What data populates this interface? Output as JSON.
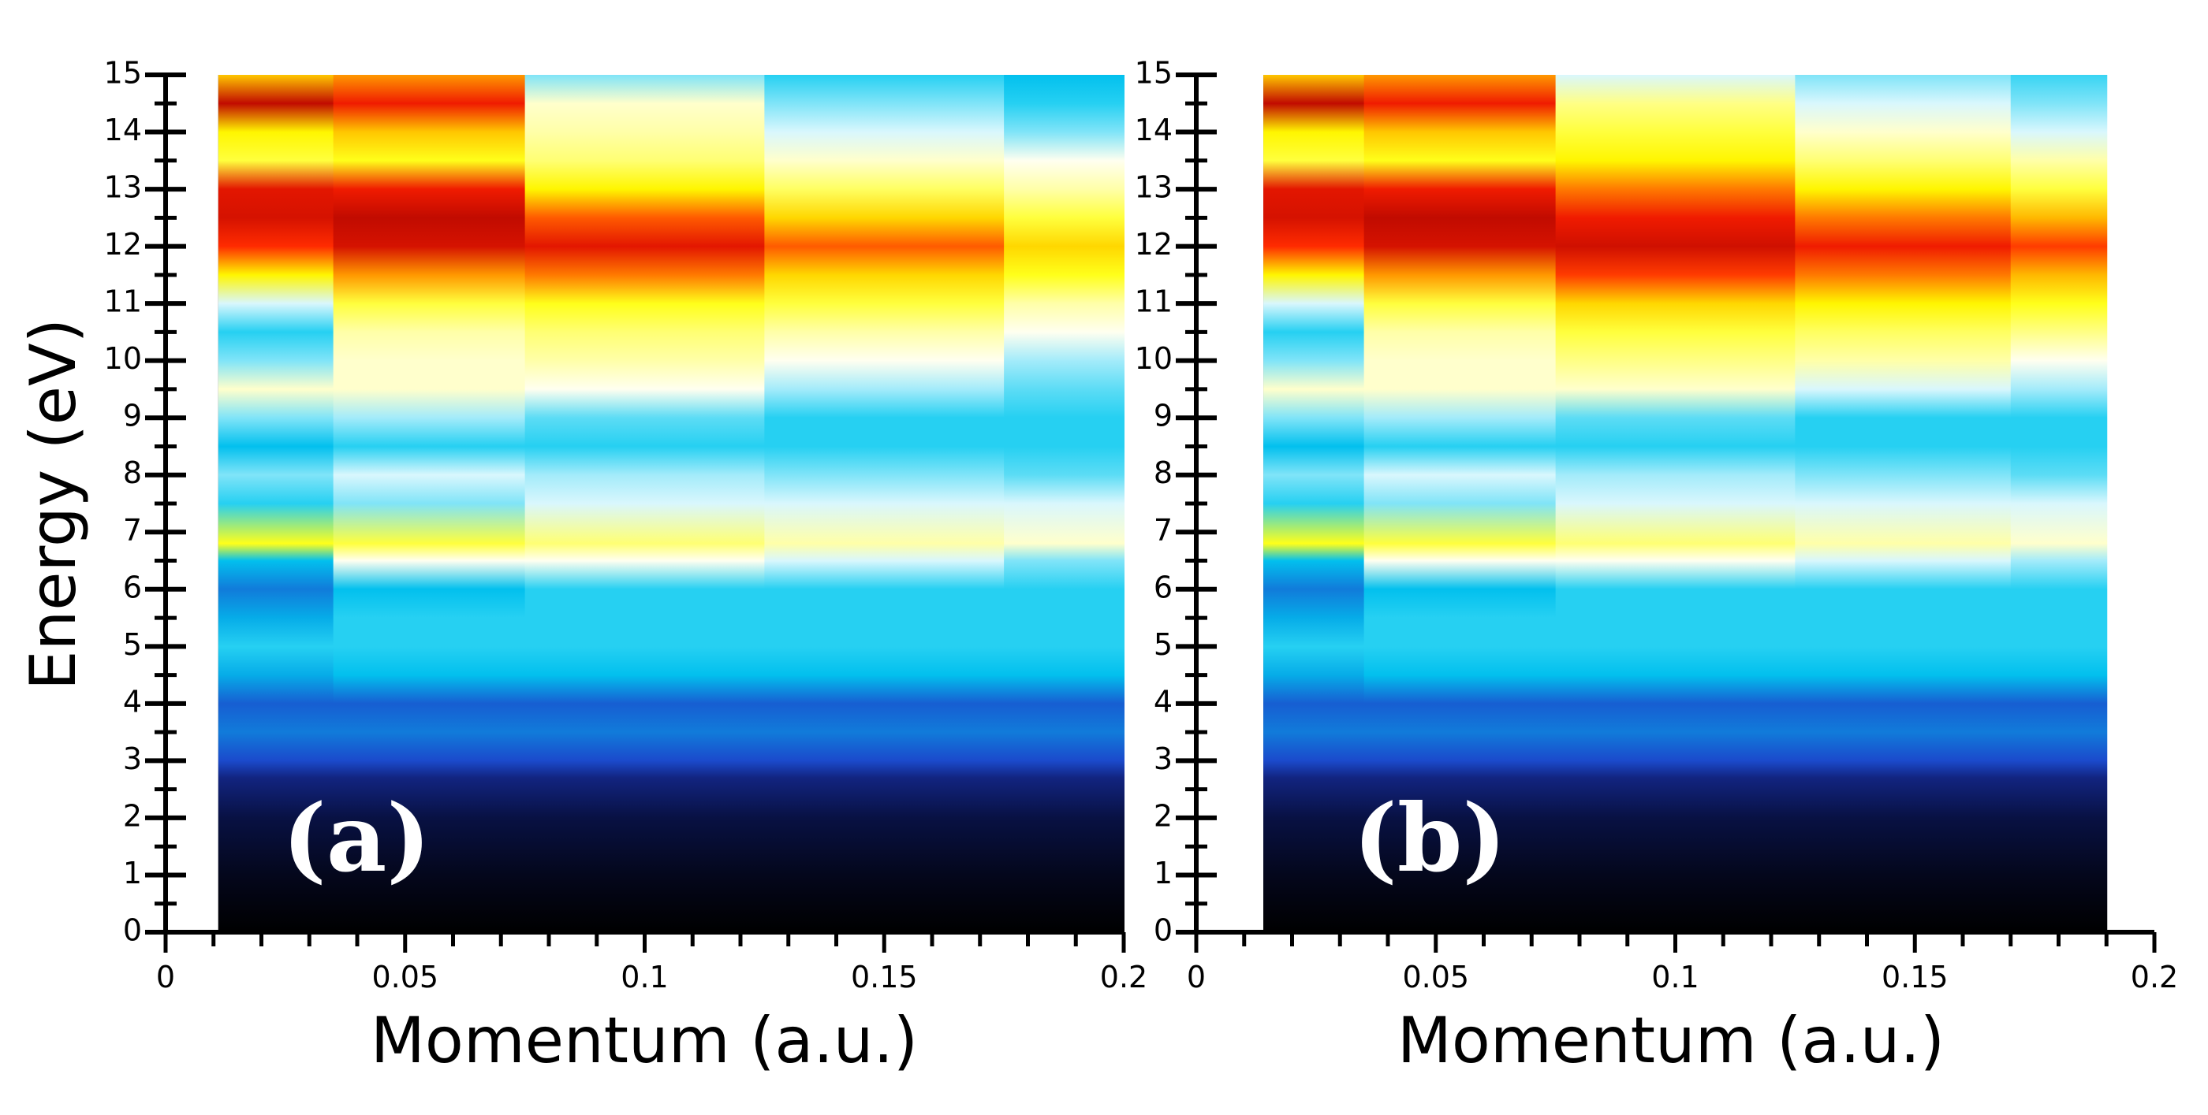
{
  "chart_data": [
    {
      "type": "heatmap",
      "panel_label": "(a)",
      "xlabel": "Momentum (a.u.)",
      "ylabel": "Energy (eV)",
      "xlim": [
        0,
        0.2
      ],
      "ylim": [
        0,
        15
      ],
      "x_data_range": [
        0.011,
        0.2
      ],
      "x_ticks": [
        "0",
        "0.05",
        "0.1",
        "0.15",
        "0.2"
      ],
      "y_ticks": [
        "0",
        "1",
        "2",
        "3",
        "4",
        "5",
        "6",
        "7",
        "8",
        "9",
        "10",
        "11",
        "12",
        "13",
        "14",
        "15"
      ],
      "colormap": [
        "#000000",
        "#0a1450",
        "#1e3cc8",
        "#00c8f0",
        "#ffffff",
        "#ffff00",
        "#ff2000",
        "#a00000"
      ],
      "intensity_profile": [
        {
          "x": 0.02,
          "energy": [
            0,
            1,
            2,
            2.7,
            3,
            3.5,
            4,
            4.5,
            5,
            5.5,
            6,
            6.5,
            6.8,
            7.5,
            8,
            8.5,
            9,
            9.5,
            10,
            10.5,
            11,
            11.5,
            12,
            12.5,
            13,
            13.5,
            14,
            14.5,
            15
          ],
          "level": [
            0,
            0.05,
            0.12,
            0.2,
            0.3,
            0.35,
            0.32,
            0.4,
            0.45,
            0.4,
            0.35,
            0.42,
            0.7,
            0.45,
            0.5,
            0.42,
            0.5,
            0.6,
            0.5,
            0.45,
            0.55,
            0.72,
            0.85,
            0.92,
            0.9,
            0.68,
            0.72,
            0.95,
            0.75
          ]
        },
        {
          "x": 0.05,
          "energy": [
            0,
            1,
            2,
            2.7,
            3,
            3.5,
            4,
            4.5,
            5,
            5.5,
            6,
            6.5,
            6.8,
            7.5,
            8,
            8.5,
            9,
            9.5,
            10,
            10.5,
            11,
            11.5,
            12,
            12.5,
            13,
            13.5,
            14,
            14.5,
            15
          ],
          "level": [
            0,
            0.05,
            0.12,
            0.2,
            0.3,
            0.35,
            0.32,
            0.42,
            0.45,
            0.45,
            0.42,
            0.58,
            0.68,
            0.5,
            0.55,
            0.45,
            0.52,
            0.6,
            0.6,
            0.62,
            0.68,
            0.78,
            0.92,
            0.95,
            0.88,
            0.7,
            0.75,
            0.88,
            0.78
          ]
        },
        {
          "x": 0.1,
          "energy": [
            0,
            1,
            2,
            2.7,
            3,
            3.5,
            4,
            4.5,
            5,
            5.5,
            6,
            6.5,
            6.8,
            7.5,
            8,
            8.5,
            9,
            9.5,
            10,
            10.5,
            11,
            11.5,
            12,
            12.5,
            13,
            13.5,
            14,
            14.5,
            15
          ],
          "level": [
            0,
            0.05,
            0.12,
            0.2,
            0.3,
            0.35,
            0.32,
            0.42,
            0.45,
            0.45,
            0.45,
            0.58,
            0.65,
            0.55,
            0.52,
            0.45,
            0.48,
            0.58,
            0.62,
            0.65,
            0.7,
            0.8,
            0.9,
            0.82,
            0.72,
            0.65,
            0.62,
            0.6,
            0.5
          ]
        },
        {
          "x": 0.15,
          "energy": [
            0,
            1,
            2,
            2.7,
            3,
            3.5,
            4,
            4.5,
            5,
            5.5,
            6,
            6.5,
            6.8,
            7.5,
            8,
            8.5,
            9,
            9.5,
            10,
            10.5,
            11,
            11.5,
            12,
            12.5,
            13,
            13.5,
            14,
            14.5,
            15
          ],
          "level": [
            0,
            0.05,
            0.12,
            0.2,
            0.3,
            0.35,
            0.32,
            0.42,
            0.45,
            0.45,
            0.45,
            0.55,
            0.62,
            0.55,
            0.5,
            0.45,
            0.45,
            0.52,
            0.58,
            0.62,
            0.68,
            0.74,
            0.82,
            0.74,
            0.66,
            0.6,
            0.55,
            0.5,
            0.45
          ]
        },
        {
          "x": 0.2,
          "energy": [
            0,
            1,
            2,
            2.7,
            3,
            3.5,
            4,
            4.5,
            5,
            5.5,
            6,
            6.5,
            6.8,
            7.5,
            8,
            8.5,
            9,
            9.5,
            10,
            10.5,
            11,
            11.5,
            12,
            12.5,
            13,
            13.5,
            14,
            14.5,
            15
          ],
          "level": [
            0,
            0.05,
            0.12,
            0.2,
            0.3,
            0.35,
            0.32,
            0.42,
            0.45,
            0.45,
            0.45,
            0.5,
            0.6,
            0.55,
            0.48,
            0.45,
            0.45,
            0.48,
            0.52,
            0.58,
            0.62,
            0.7,
            0.74,
            0.68,
            0.62,
            0.58,
            0.5,
            0.45,
            0.42
          ]
        }
      ]
    },
    {
      "type": "heatmap",
      "panel_label": "(b)",
      "xlabel": "Momentum (a.u.)",
      "ylabel": "",
      "xlim": [
        0,
        0.2
      ],
      "ylim": [
        0,
        15
      ],
      "x_data_range": [
        0.014,
        0.19
      ],
      "x_ticks": [
        "0",
        "0.05",
        "0.1",
        "0.15",
        "0.2"
      ],
      "y_ticks": [
        "0",
        "1",
        "2",
        "3",
        "4",
        "5",
        "6",
        "7",
        "8",
        "9",
        "10",
        "11",
        "12",
        "13",
        "14",
        "15"
      ],
      "colormap": [
        "#000000",
        "#0a1450",
        "#1e3cc8",
        "#00c8f0",
        "#ffffff",
        "#ffff00",
        "#ff2000",
        "#a00000"
      ],
      "intensity_profile": [
        {
          "x": 0.02,
          "energy": [
            0,
            1,
            2,
            2.7,
            3,
            3.5,
            4,
            4.5,
            5,
            5.5,
            6,
            6.5,
            6.8,
            7.5,
            8,
            8.5,
            9,
            9.5,
            10,
            10.5,
            11,
            11.5,
            12,
            12.5,
            13,
            13.5,
            14,
            14.5,
            15
          ],
          "level": [
            0,
            0.05,
            0.12,
            0.2,
            0.3,
            0.35,
            0.32,
            0.4,
            0.45,
            0.4,
            0.35,
            0.42,
            0.7,
            0.45,
            0.5,
            0.42,
            0.5,
            0.6,
            0.5,
            0.45,
            0.55,
            0.72,
            0.85,
            0.92,
            0.9,
            0.68,
            0.72,
            0.95,
            0.75
          ]
        },
        {
          "x": 0.05,
          "energy": [
            0,
            1,
            2,
            2.7,
            3,
            3.5,
            4,
            4.5,
            5,
            5.5,
            6,
            6.5,
            6.8,
            7.5,
            8,
            8.5,
            9,
            9.5,
            10,
            10.5,
            11,
            11.5,
            12,
            12.5,
            13,
            13.5,
            14,
            14.5,
            15
          ],
          "level": [
            0,
            0.05,
            0.12,
            0.2,
            0.3,
            0.35,
            0.32,
            0.42,
            0.45,
            0.45,
            0.42,
            0.58,
            0.68,
            0.5,
            0.55,
            0.45,
            0.52,
            0.6,
            0.6,
            0.62,
            0.68,
            0.78,
            0.92,
            0.95,
            0.88,
            0.7,
            0.75,
            0.88,
            0.78
          ]
        },
        {
          "x": 0.1,
          "energy": [
            0,
            1,
            2,
            2.7,
            3,
            3.5,
            4,
            4.5,
            5,
            5.5,
            6,
            6.5,
            6.8,
            7.5,
            8,
            8.5,
            9,
            9.5,
            10,
            10.5,
            11,
            11.5,
            12,
            12.5,
            13,
            13.5,
            14,
            14.5,
            15
          ],
          "level": [
            0,
            0.05,
            0.12,
            0.2,
            0.3,
            0.35,
            0.32,
            0.42,
            0.45,
            0.45,
            0.45,
            0.58,
            0.65,
            0.55,
            0.52,
            0.45,
            0.48,
            0.6,
            0.64,
            0.68,
            0.74,
            0.84,
            0.93,
            0.88,
            0.8,
            0.72,
            0.68,
            0.64,
            0.55
          ]
        },
        {
          "x": 0.15,
          "energy": [
            0,
            1,
            2,
            2.7,
            3,
            3.5,
            4,
            4.5,
            5,
            5.5,
            6,
            6.5,
            6.8,
            7.5,
            8,
            8.5,
            9,
            9.5,
            10,
            10.5,
            11,
            11.5,
            12,
            12.5,
            13,
            13.5,
            14,
            14.5,
            15
          ],
          "level": [
            0,
            0.05,
            0.12,
            0.2,
            0.3,
            0.35,
            0.32,
            0.42,
            0.45,
            0.45,
            0.45,
            0.55,
            0.62,
            0.55,
            0.5,
            0.45,
            0.45,
            0.55,
            0.62,
            0.66,
            0.72,
            0.8,
            0.88,
            0.8,
            0.72,
            0.65,
            0.6,
            0.55,
            0.5
          ]
        },
        {
          "x": 0.19,
          "energy": [
            0,
            1,
            2,
            2.7,
            3,
            3.5,
            4,
            4.5,
            5,
            5.5,
            6,
            6.5,
            6.8,
            7.5,
            8,
            8.5,
            9,
            9.5,
            10,
            10.5,
            11,
            11.5,
            12,
            12.5,
            13,
            13.5,
            14,
            14.5,
            15
          ],
          "level": [
            0,
            0.05,
            0.12,
            0.2,
            0.3,
            0.35,
            0.32,
            0.42,
            0.45,
            0.45,
            0.45,
            0.52,
            0.6,
            0.55,
            0.48,
            0.45,
            0.45,
            0.52,
            0.58,
            0.64,
            0.7,
            0.76,
            0.84,
            0.76,
            0.68,
            0.62,
            0.55,
            0.5,
            0.46
          ]
        }
      ]
    }
  ]
}
